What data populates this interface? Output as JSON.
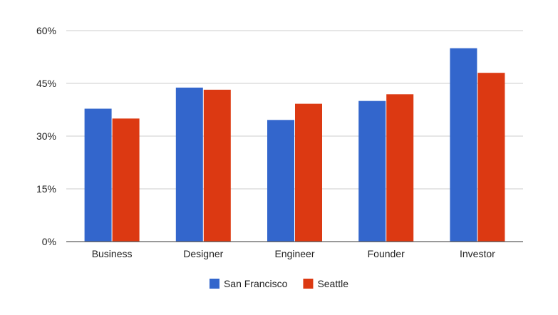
{
  "chart_data": {
    "type": "bar",
    "title": "",
    "xlabel": "",
    "ylabel": "",
    "categories": [
      "Business",
      "Designer",
      "Engineer",
      "Founder",
      "Investor"
    ],
    "series": [
      {
        "name": "San Francisco",
        "color": "#3366cc",
        "values": [
          37.8,
          43.8,
          34.6,
          40.0,
          55.0
        ]
      },
      {
        "name": "Seattle",
        "color": "#dc3912",
        "values": [
          35.0,
          43.2,
          39.2,
          41.9,
          48.0
        ]
      }
    ],
    "ylim": [
      0,
      60
    ],
    "yticks": [
      0,
      15,
      30,
      45,
      60
    ],
    "ytick_labels": [
      "0%",
      "15%",
      "30%",
      "45%",
      "60%"
    ],
    "grid": true,
    "legend": "bottom"
  }
}
